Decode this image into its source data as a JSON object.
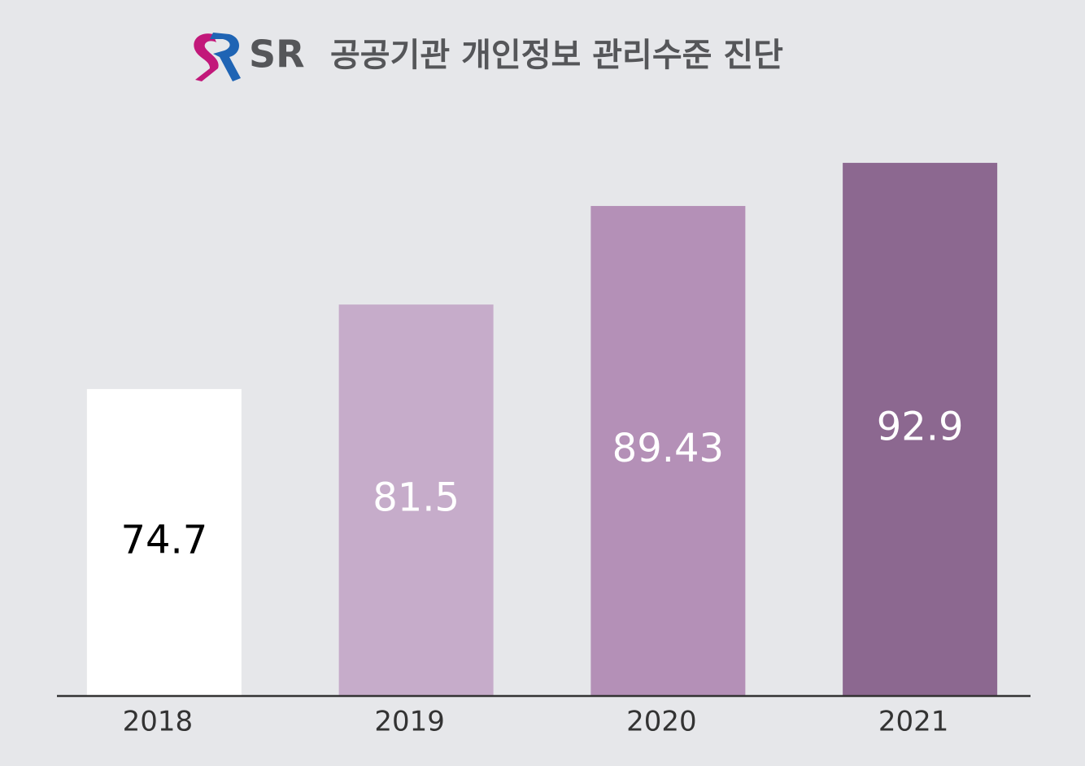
{
  "chart_data": {
    "type": "bar",
    "logo_text": "SR",
    "title": "공공기관 개인정보 관리수준 진단",
    "categories": [
      "2018",
      "2019",
      "2020",
      "2021"
    ],
    "values": [
      74.7,
      81.5,
      89.43,
      92.9
    ],
    "colors": [
      "#ffffff",
      "#c6acca",
      "#b490b7",
      "#8c6890"
    ],
    "ylim": [
      50,
      95
    ]
  }
}
